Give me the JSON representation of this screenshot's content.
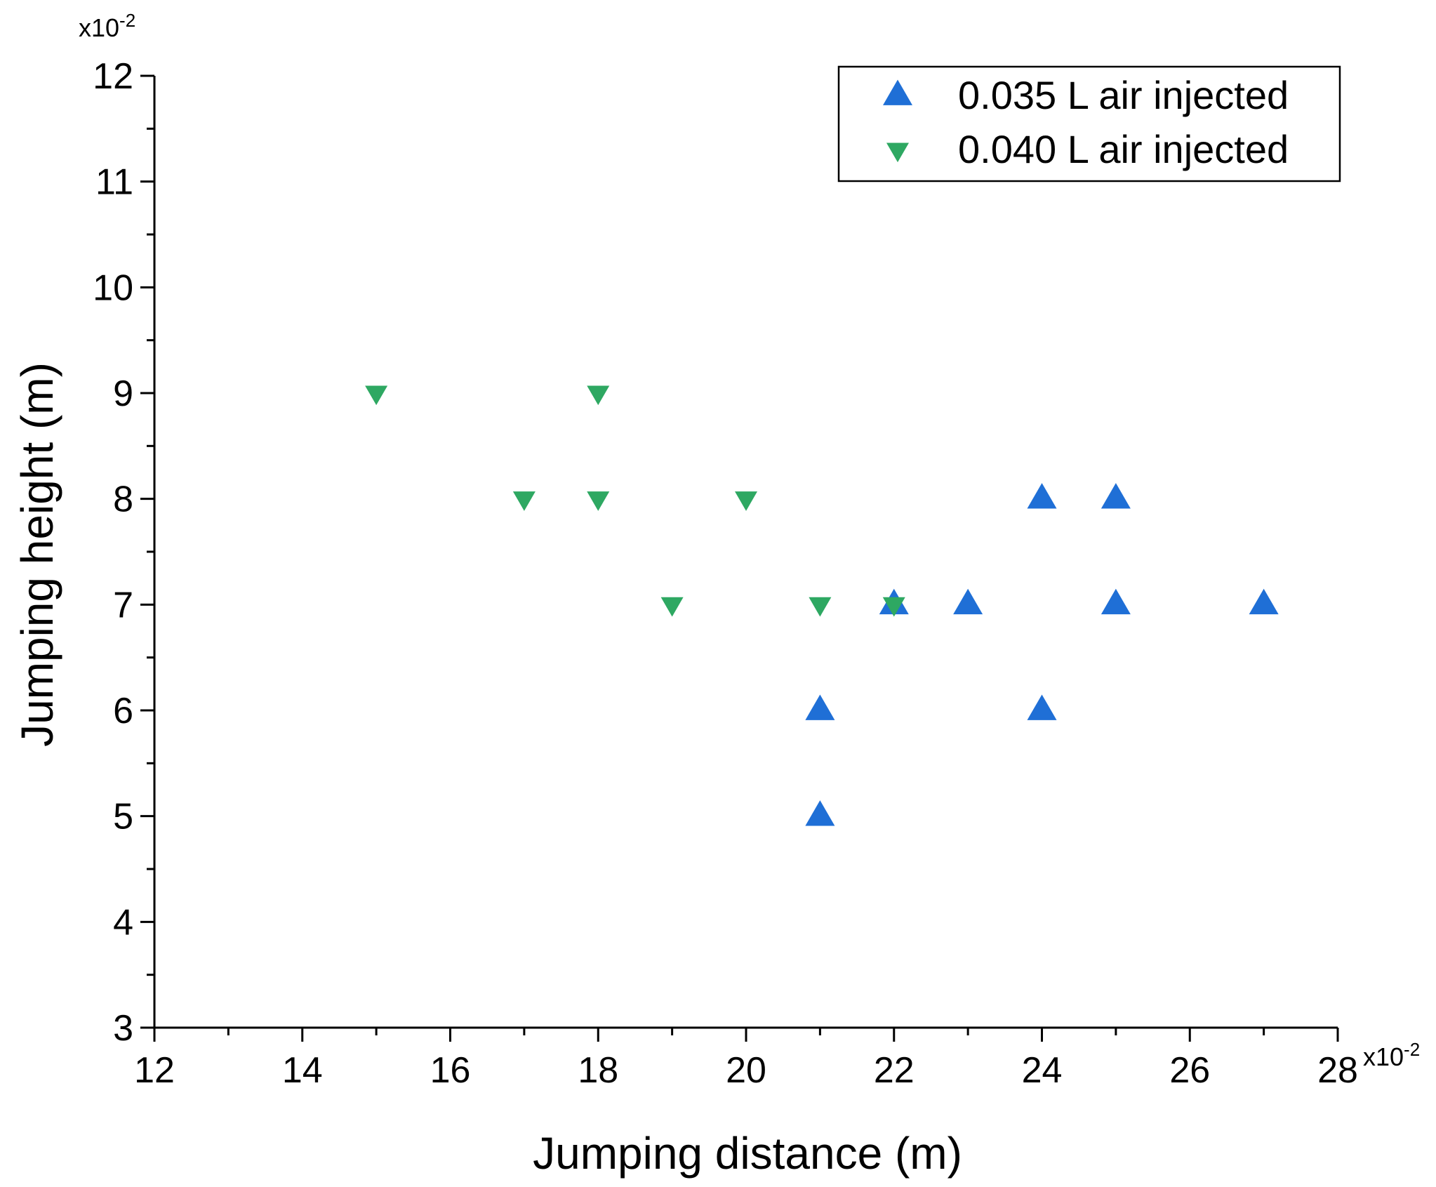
{
  "chart_data": {
    "type": "scatter",
    "title": "",
    "xlabel": "Jumping distance (m)",
    "ylabel": "Jumping height (m)",
    "x_multiplier": {
      "base": "x10",
      "exponent": "-2"
    },
    "y_multiplier": {
      "base": "x10",
      "exponent": "-2"
    },
    "xlim": [
      12,
      28
    ],
    "ylim": [
      3,
      12
    ],
    "x_ticks": [
      "12",
      "14",
      "16",
      "18",
      "20",
      "22",
      "24",
      "26",
      "28"
    ],
    "y_ticks": [
      "3",
      "4",
      "5",
      "6",
      "7",
      "8",
      "9",
      "10",
      "11",
      "12"
    ],
    "grid": false,
    "legend_position": "top-right",
    "series": [
      {
        "name": "0.035 L air injected",
        "marker": "triangle-up",
        "color": "#1f6fd6",
        "points": [
          {
            "x": 21,
            "y": 6
          },
          {
            "x": 21,
            "y": 5
          },
          {
            "x": 22,
            "y": 7
          },
          {
            "x": 23,
            "y": 7
          },
          {
            "x": 24,
            "y": 8
          },
          {
            "x": 24,
            "y": 6
          },
          {
            "x": 25,
            "y": 8
          },
          {
            "x": 25,
            "y": 7
          },
          {
            "x": 27,
            "y": 7
          }
        ]
      },
      {
        "name": "0.040 L air injected",
        "marker": "triangle-down",
        "color": "#2ea862",
        "points": [
          {
            "x": 15,
            "y": 9
          },
          {
            "x": 17,
            "y": 8
          },
          {
            "x": 18,
            "y": 9
          },
          {
            "x": 18,
            "y": 8
          },
          {
            "x": 19,
            "y": 7
          },
          {
            "x": 20,
            "y": 8
          },
          {
            "x": 21,
            "y": 7
          },
          {
            "x": 22,
            "y": 7
          }
        ]
      }
    ]
  }
}
